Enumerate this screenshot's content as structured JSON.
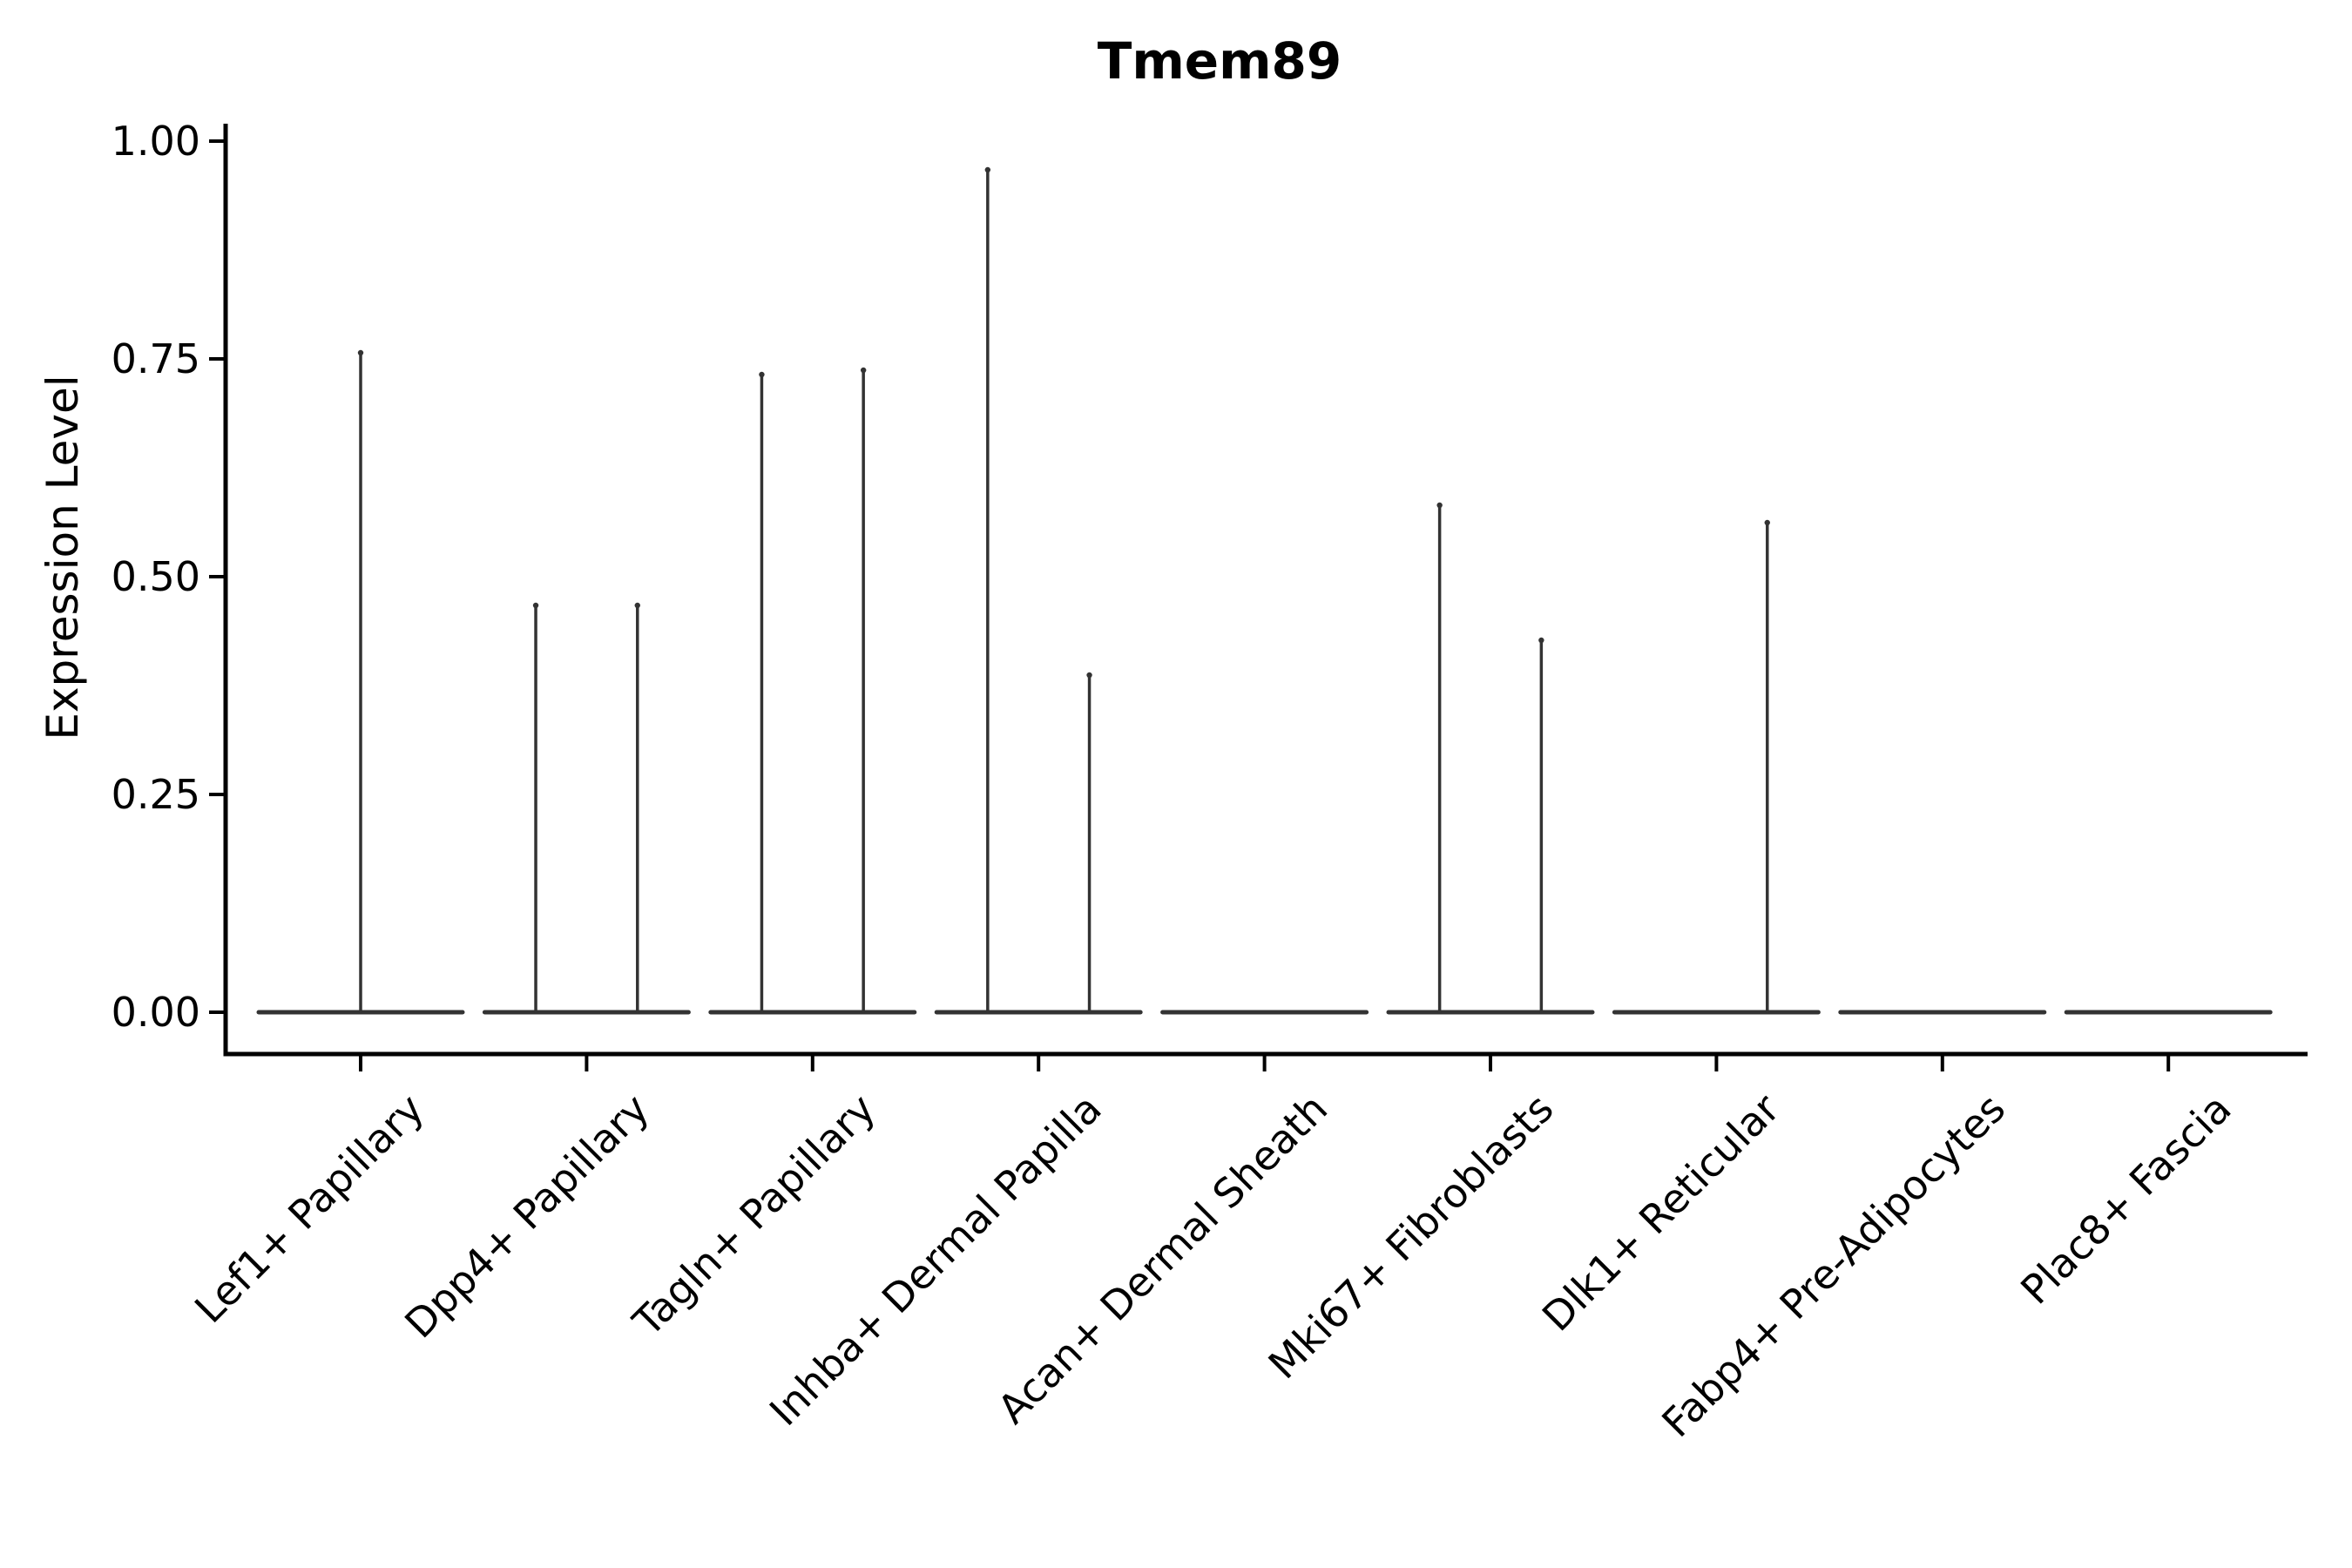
{
  "chart_data": {
    "type": "violin",
    "title": "Tmem89",
    "xlabel": "",
    "ylabel": "Expression Level",
    "yticks": [
      "0.00",
      "0.25",
      "0.50",
      "0.75",
      "1.00"
    ],
    "ytick_values": [
      0.0,
      0.25,
      0.5,
      0.75,
      1.0
    ],
    "ylim": [
      -0.048,
      1.02
    ],
    "grid": false,
    "legend": "none",
    "description": "Violin plot of Tmem89 expression per fibroblast cluster; expression is near zero in all clusters, each violin collapses to a flat base at 0 with thin spikes up to the maximum expressing cells. Two dodged groups per cluster where present.",
    "categories": [
      "Lef1+ Papillary",
      "Dpp4+ Papillary",
      "Tagln+ Papillary",
      "Inhba+ Dermal Papilla",
      "Acan+ Dermal Sheath",
      "Mki67+ Fibroblasts",
      "Dlk1+ Reticular",
      "Fabp4+ Pre-Adipocytes",
      "Plac8+ Fascia"
    ],
    "base_half_width_units": 0.451,
    "group_offset_units": 0.225,
    "violins": [
      {
        "category": "Lef1+ Papillary",
        "spikes": [
          {
            "offset": 0.0,
            "max": 0.76
          }
        ]
      },
      {
        "category": "Dpp4+ Papillary",
        "spikes": [
          {
            "offset": -0.225,
            "max": 0.47
          },
          {
            "offset": 0.225,
            "max": 0.47
          }
        ]
      },
      {
        "category": "Tagln+ Papillary",
        "spikes": [
          {
            "offset": -0.225,
            "max": 0.735
          },
          {
            "offset": 0.225,
            "max": 0.74
          }
        ]
      },
      {
        "category": "Inhba+ Dermal Papilla",
        "spikes": [
          {
            "offset": -0.225,
            "max": 0.97
          },
          {
            "offset": 0.225,
            "max": 0.39
          }
        ]
      },
      {
        "category": "Acan+ Dermal Sheath",
        "spikes": []
      },
      {
        "category": "Mki67+ Fibroblasts",
        "spikes": [
          {
            "offset": -0.225,
            "max": 0.585
          },
          {
            "offset": 0.225,
            "max": 0.43
          }
        ]
      },
      {
        "category": "Dlk1+ Reticular",
        "spikes": [
          {
            "offset": 0.225,
            "max": 0.565
          }
        ]
      },
      {
        "category": "Fabp4+ Pre-Adipocytes",
        "spikes": []
      },
      {
        "category": "Plac8+ Fascia",
        "spikes": []
      }
    ],
    "colors": {
      "background": "#ffffff",
      "spine": "#000000",
      "violin_stroke": "#333333",
      "text": "#000000"
    }
  }
}
